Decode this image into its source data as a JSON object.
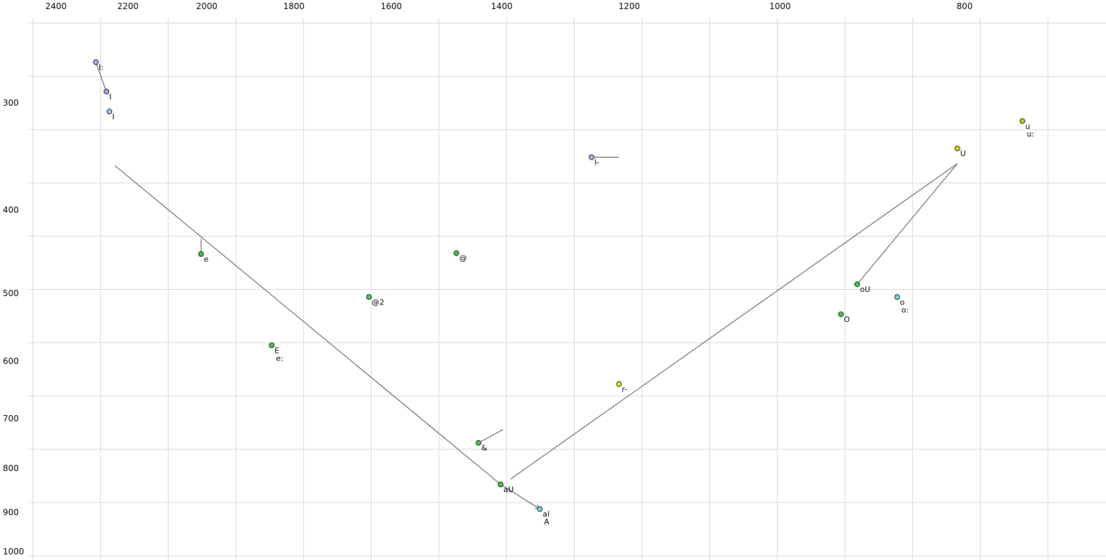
{
  "chart_data": {
    "type": "scatter",
    "title": "",
    "description": "Vowel formant plot (F2 horizontal reversed log scale, F1 vertical log scale), values in Hz",
    "x_ticks": [
      2400,
      2200,
      2000,
      1800,
      1600,
      1400,
      1200,
      1000,
      800
    ],
    "y_ticks": [
      300,
      400,
      500,
      600,
      700,
      800,
      900,
      1000
    ],
    "x_scale": "log-reversed",
    "y_scale": "log",
    "grid": true,
    "colors": {
      "grid": "#d6d6d6",
      "line": "#4a4a4a",
      "label": "#000000",
      "point_outline": "#222222"
    },
    "points": [
      {
        "label": "I:",
        "f2": 2287,
        "f1": 269,
        "color": "#aab0e8"
      },
      {
        "label": "I",
        "f2": 2258,
        "f1": 291,
        "color": "#98b0e8"
      },
      {
        "label": "I",
        "f2": 2250,
        "f1": 307,
        "color": "#a0c4f0"
      },
      {
        "label": "u",
        "label2": "u:",
        "f2": 746,
        "f1": 315,
        "color": "#a8e000"
      },
      {
        "label": "U",
        "f2": 807,
        "f1": 339,
        "color": "#d8e000"
      },
      {
        "label": "I-",
        "f2": 1256,
        "f1": 347,
        "color": "#b0b6ee"
      },
      {
        "label": "e",
        "f2": 2014,
        "f1": 450,
        "color": "#3ccc3c"
      },
      {
        "label": "@",
        "f2": 1479,
        "f1": 449,
        "color": "#3ccc3c"
      },
      {
        "label": "@2",
        "f2": 1644,
        "f1": 505,
        "color": "#44cc66"
      },
      {
        "label": "oU",
        "f2": 911,
        "f1": 488,
        "color": "#3ccc3c"
      },
      {
        "label": "o",
        "label2": "o:",
        "f2": 868,
        "f1": 505,
        "color": "#70dcdc"
      },
      {
        "label": "O",
        "f2": 929,
        "f1": 529,
        "color": "#3ccc3c"
      },
      {
        "label": "E",
        "label2": "e:",
        "f2": 1849,
        "f1": 575,
        "color": "#3ccc3c"
      },
      {
        "label": "r-",
        "f2": 1215,
        "f1": 638,
        "color": "#e8e428"
      },
      {
        "label": "&",
        "f2": 1440,
        "f1": 747,
        "color": "#3ccc3c"
      },
      {
        "label": "aU",
        "f2": 1402,
        "f1": 835,
        "color": "#3ccc3c"
      },
      {
        "label": "aI",
        "label2": "A",
        "f2": 1337,
        "f1": 892,
        "color": "#70dcdc"
      }
    ],
    "segments": [
      {
        "from": [
          2287,
          269
        ],
        "to": [
          2258,
          291
        ]
      },
      {
        "from": [
          2014,
          432
        ],
        "to": [
          2014,
          450
        ]
      },
      {
        "from": [
          1256,
          347
        ],
        "to": [
          1215,
          347
        ]
      },
      {
        "from": [
          2235,
          355
        ],
        "to": [
          1402,
          835
        ]
      },
      {
        "from": [
          807,
          353
        ],
        "to": [
          1385,
          823
        ]
      },
      {
        "from": [
          807,
          353
        ],
        "to": [
          911,
          488
        ]
      },
      {
        "from": [
          1440,
          747
        ],
        "to": [
          1398,
          721
        ]
      },
      {
        "from": [
          1402,
          835
        ],
        "to": [
          1337,
          892
        ],
        "arrow": true
      }
    ]
  }
}
